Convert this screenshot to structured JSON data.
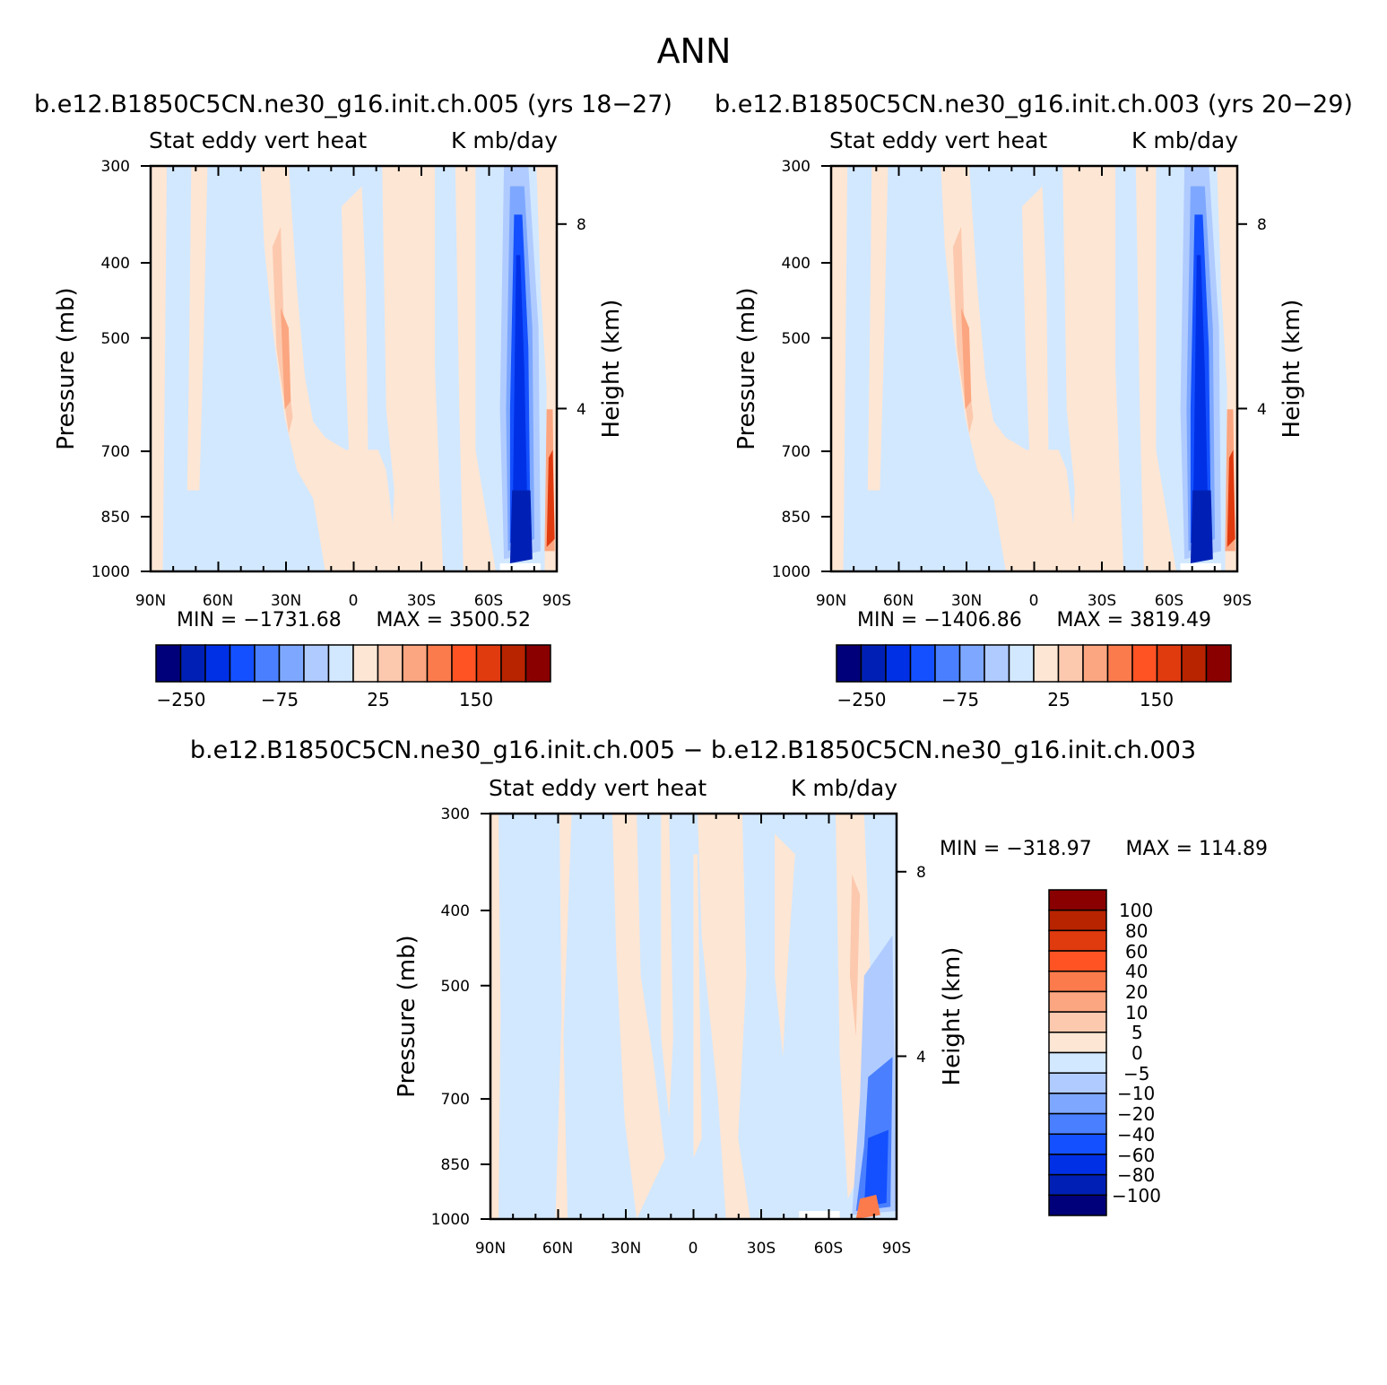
{
  "figure": {
    "title": "ANN",
    "colors": {
      "diverging_full": [
        "#00007a",
        "#0020b5",
        "#0030e6",
        "#1450ff",
        "#4a80ff",
        "#7ea8ff",
        "#b0cbff",
        "#d2e8ff",
        "#fde6d4",
        "#fcc9ae",
        "#fba680",
        "#fb7b4c",
        "#ff5323",
        "#e03a0f",
        "#b82300",
        "#8a0000"
      ],
      "diff_scale": [
        "#8a0000",
        "#b82300",
        "#e03a0f",
        "#ff5323",
        "#fb7b4c",
        "#fba680",
        "#fcc9ae",
        "#fde6d4",
        "#d2e8ff",
        "#b0cbff",
        "#7ea8ff",
        "#4a80ff",
        "#1450ff",
        "#0030e6",
        "#0020b5",
        "#00007a"
      ]
    }
  },
  "chart_data": [
    {
      "type": "heatmap",
      "title": "b.e12.B1850C5CN.ne30_g16.init.ch.005 (yrs 18−27)",
      "field_label": "Stat eddy vert heat",
      "units_label": "K mb/day",
      "xlabel": "",
      "ylabel": "Pressure (mb)",
      "y2label": "Height (km)",
      "x_ticks": [
        "90N",
        "60N",
        "30N",
        "0",
        "30S",
        "60S",
        "90S"
      ],
      "y_ticks": [
        "300",
        "400",
        "500",
        "700",
        "850",
        "1000"
      ],
      "y2_ticks": [
        "8",
        "4"
      ],
      "ylim": [
        300,
        1000
      ],
      "min_label": "MIN = −1731.68",
      "max_label": "MAX = 3500.52",
      "min": -1731.68,
      "max": 3500.52,
      "colorbar_labels": [
        "−250",
        "−75",
        "25",
        "150"
      ]
    },
    {
      "type": "heatmap",
      "title": "b.e12.B1850C5CN.ne30_g16.init.ch.003 (yrs 20−29)",
      "field_label": "Stat eddy vert heat",
      "units_label": "K mb/day",
      "xlabel": "",
      "ylabel": "Pressure (mb)",
      "y2label": "Height (km)",
      "x_ticks": [
        "90N",
        "60N",
        "30N",
        "0",
        "30S",
        "60S",
        "90S"
      ],
      "y_ticks": [
        "300",
        "400",
        "500",
        "700",
        "850",
        "1000"
      ],
      "y2_ticks": [
        "8",
        "4"
      ],
      "ylim": [
        300,
        1000
      ],
      "min_label": "MIN = −1406.86",
      "max_label": "MAX = 3819.49",
      "min": -1406.86,
      "max": 3819.49,
      "colorbar_labels": [
        "−250",
        "−75",
        "25",
        "150"
      ]
    },
    {
      "type": "heatmap",
      "title": "b.e12.B1850C5CN.ne30_g16.init.ch.005 − b.e12.B1850C5CN.ne30_g16.init.ch.003",
      "field_label": "Stat eddy vert heat",
      "units_label": "K mb/day",
      "xlabel": "",
      "ylabel": "Pressure (mb)",
      "y2label": "Height (km)",
      "x_ticks": [
        "90N",
        "60N",
        "30N",
        "0",
        "30S",
        "60S",
        "90S"
      ],
      "y_ticks": [
        "300",
        "400",
        "500",
        "700",
        "850",
        "1000"
      ],
      "y2_ticks": [
        "8",
        "4"
      ],
      "ylim": [
        300,
        1000
      ],
      "min_label": "MIN = −318.97",
      "max_label": "MAX = 114.89",
      "min": -318.97,
      "max": 114.89,
      "colorbar_labels": [
        "100",
        "80",
        "60",
        "40",
        "20",
        "10",
        "5",
        "0",
        "−5",
        "−10",
        "−20",
        "−40",
        "−60",
        "−80",
        "−100"
      ]
    }
  ]
}
